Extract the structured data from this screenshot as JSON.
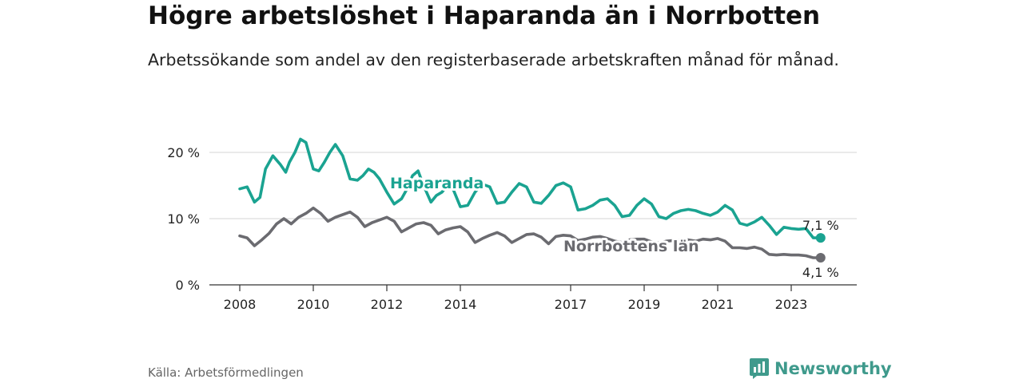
{
  "header": {
    "title": "Högre arbetslöshet i Haparanda än i Norrbotten",
    "subtitle": "Arbetssökande som andel av den registerbaserade arbetskraften månad för månad."
  },
  "footer": {
    "source": "Källa: Arbetsförmedlingen",
    "brand": "Newsworthy"
  },
  "colors": {
    "haparanda": "#1aa391",
    "norrbotten": "#6b6b70",
    "grid": "#d6d6d6",
    "axis": "#333333"
  },
  "chart_data": {
    "type": "line",
    "title": "Högre arbetslöshet i Haparanda än i Norrbotten",
    "xlabel": "",
    "ylabel": "",
    "xlim": [
      2008.0,
      2024.0
    ],
    "ylim": [
      0,
      20
    ],
    "x_ticks": [
      2008,
      2010,
      2012,
      2014,
      2017,
      2019,
      2021,
      2023
    ],
    "y_ticks": [
      {
        "value": 0,
        "label": "0 %"
      },
      {
        "value": 10,
        "label": "10 %"
      },
      {
        "value": 20,
        "label": "20 %"
      }
    ],
    "grid": true,
    "series": [
      {
        "name": "Haparanda",
        "label": "Haparanda",
        "end_label": "7,1 %",
        "x": [
          2008.0,
          2008.2,
          2008.4,
          2008.55,
          2008.7,
          2008.9,
          2009.1,
          2009.25,
          2009.35,
          2009.5,
          2009.65,
          2009.8,
          2010.0,
          2010.15,
          2010.3,
          2010.45,
          2010.6,
          2010.8,
          2011.0,
          2011.2,
          2011.35,
          2011.5,
          2011.65,
          2011.8,
          2012.0,
          2012.2,
          2012.4,
          2012.55,
          2012.7,
          2012.85,
          2013.0,
          2013.2,
          2013.35,
          2013.5,
          2013.65,
          2013.8,
          2014.0,
          2014.2,
          2014.4,
          2014.6,
          2014.8,
          2015.0,
          2015.2,
          2015.4,
          2015.6,
          2015.8,
          2016.0,
          2016.2,
          2016.4,
          2016.6,
          2016.8,
          2017.0,
          2017.2,
          2017.4,
          2017.6,
          2017.8,
          2018.0,
          2018.2,
          2018.4,
          2018.6,
          2018.8,
          2019.0,
          2019.2,
          2019.4,
          2019.6,
          2019.8,
          2020.0,
          2020.2,
          2020.4,
          2020.6,
          2020.8,
          2021.0,
          2021.2,
          2021.4,
          2021.6,
          2021.8,
          2022.0,
          2022.2,
          2022.4,
          2022.6,
          2022.8,
          2023.0,
          2023.2,
          2023.4,
          2023.6,
          2023.8
        ],
        "values": [
          14.5,
          14.8,
          12.5,
          13.2,
          17.5,
          19.5,
          18.2,
          17.0,
          18.5,
          20.0,
          22.0,
          21.5,
          17.5,
          17.2,
          18.5,
          20.0,
          21.2,
          19.5,
          16.0,
          15.8,
          16.5,
          17.5,
          17.0,
          16.0,
          14.0,
          12.2,
          13.0,
          14.5,
          16.5,
          17.2,
          15.0,
          12.5,
          13.5,
          14.0,
          15.0,
          14.5,
          11.8,
          12.0,
          14.0,
          15.2,
          14.8,
          12.3,
          12.5,
          14.0,
          15.3,
          14.8,
          12.5,
          12.3,
          13.5,
          15.0,
          15.4,
          14.8,
          11.3,
          11.5,
          12.0,
          12.8,
          13.0,
          12.0,
          10.3,
          10.5,
          12.0,
          13.0,
          12.2,
          10.3,
          10.0,
          10.8,
          11.2,
          11.4,
          11.2,
          10.8,
          10.5,
          11.0,
          12.0,
          11.3,
          9.3,
          9.0,
          9.5,
          10.2,
          9.0,
          7.6,
          8.7,
          8.5,
          8.4,
          8.5,
          7.1,
          7.1
        ]
      },
      {
        "name": "Norrbottens län",
        "label": "Norrbottens län",
        "end_label": "4,1 %",
        "x": [
          2008.0,
          2008.2,
          2008.4,
          2008.6,
          2008.8,
          2009.0,
          2009.2,
          2009.4,
          2009.6,
          2009.8,
          2010.0,
          2010.2,
          2010.4,
          2010.6,
          2010.8,
          2011.0,
          2011.2,
          2011.4,
          2011.6,
          2011.8,
          2012.0,
          2012.2,
          2012.4,
          2012.6,
          2012.8,
          2013.0,
          2013.2,
          2013.4,
          2013.6,
          2013.8,
          2014.0,
          2014.2,
          2014.4,
          2014.6,
          2014.8,
          2015.0,
          2015.2,
          2015.4,
          2015.6,
          2015.8,
          2016.0,
          2016.2,
          2016.4,
          2016.6,
          2016.8,
          2017.0,
          2017.2,
          2017.4,
          2017.6,
          2017.8,
          2018.0,
          2018.2,
          2018.4,
          2018.6,
          2018.8,
          2019.0,
          2019.2,
          2019.4,
          2019.6,
          2019.8,
          2020.0,
          2020.2,
          2020.4,
          2020.6,
          2020.8,
          2021.0,
          2021.2,
          2021.4,
          2021.6,
          2021.8,
          2022.0,
          2022.2,
          2022.4,
          2022.6,
          2022.8,
          2023.0,
          2023.2,
          2023.4,
          2023.6,
          2023.8
        ],
        "values": [
          7.4,
          7.1,
          5.9,
          6.8,
          7.8,
          9.2,
          10.0,
          9.2,
          10.2,
          10.8,
          11.6,
          10.8,
          9.6,
          10.2,
          10.6,
          11.0,
          10.2,
          8.8,
          9.4,
          9.8,
          10.2,
          9.6,
          8.0,
          8.6,
          9.2,
          9.4,
          9.0,
          7.7,
          8.3,
          8.6,
          8.8,
          8.0,
          6.4,
          7.0,
          7.5,
          7.9,
          7.4,
          6.4,
          7.0,
          7.6,
          7.7,
          7.2,
          6.2,
          7.3,
          7.5,
          7.4,
          6.7,
          6.9,
          7.2,
          7.3,
          7.0,
          6.6,
          6.4,
          6.8,
          6.9,
          6.9,
          6.5,
          6.3,
          6.6,
          6.7,
          6.8,
          6.8,
          6.6,
          6.9,
          6.8,
          7.0,
          6.6,
          5.6,
          5.6,
          5.5,
          5.7,
          5.4,
          4.6,
          4.5,
          4.6,
          4.5,
          4.5,
          4.4,
          4.1,
          4.1
        ]
      }
    ]
  }
}
